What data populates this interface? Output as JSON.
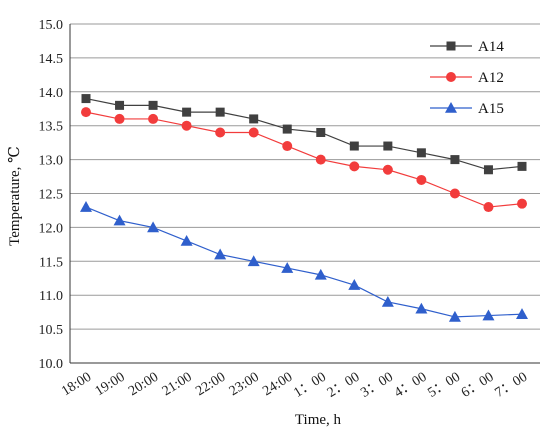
{
  "chart_data": {
    "type": "line",
    "title": "",
    "xlabel": "Time, h",
    "ylabel": "Temperature, ℃",
    "ylim": [
      10.0,
      15.0
    ],
    "yticks": [
      "10.0",
      "10.5",
      "11.0",
      "11.5",
      "12.0",
      "12.5",
      "13.0",
      "13.5",
      "14.0",
      "14.5",
      "15.0"
    ],
    "categories": [
      "18:00",
      "19:00",
      "20:00",
      "21:00",
      "22:00",
      "23:00",
      "24:00",
      "1：00",
      "2：00",
      "3：00",
      "4：00",
      "5：00",
      "6：00",
      "7：00"
    ],
    "grid": true,
    "legend_position": "top-right",
    "series": [
      {
        "name": "A14",
        "marker": "square",
        "color": "#404040",
        "values": [
          13.9,
          13.8,
          13.8,
          13.7,
          13.7,
          13.6,
          13.45,
          13.4,
          13.2,
          13.2,
          13.1,
          13.0,
          12.85,
          12.9
        ]
      },
      {
        "name": "A12",
        "marker": "circle",
        "color": "#f23c3c",
        "values": [
          13.7,
          13.6,
          13.6,
          13.5,
          13.4,
          13.4,
          13.2,
          13.0,
          12.9,
          12.85,
          12.7,
          12.5,
          12.3,
          12.35
        ]
      },
      {
        "name": "A15",
        "marker": "triangle",
        "color": "#2f5fcc",
        "values": [
          12.3,
          12.1,
          12.0,
          11.8,
          11.6,
          11.5,
          11.4,
          11.3,
          11.15,
          10.9,
          10.8,
          10.68,
          10.7,
          10.72
        ]
      }
    ]
  }
}
